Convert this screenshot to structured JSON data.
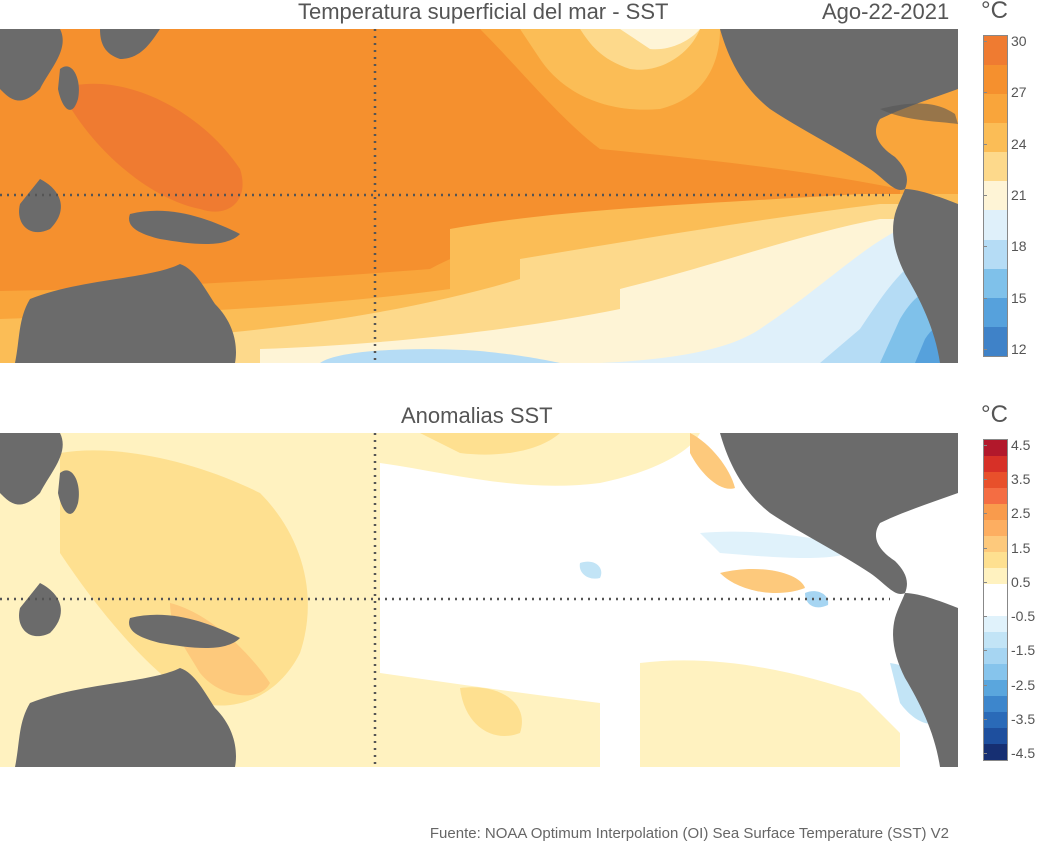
{
  "sst_panel": {
    "title": "Temperatura superficial del mar - SST",
    "date": "Ago-22-2021",
    "unit": "°C",
    "colorbar": {
      "ticks": [
        "30",
        "27",
        "24",
        "21",
        "18",
        "15",
        "12"
      ],
      "colors": [
        "#ef7b31",
        "#f5902e",
        "#f9a53b",
        "#fbbd56",
        "#fdd98b",
        "#fef4d6",
        "#dff0fa",
        "#b5dcf5",
        "#7fc1ea",
        "#56a1dc",
        "#3f82c8"
      ]
    }
  },
  "anomaly_panel": {
    "title": "Anomalias SST",
    "unit": "°C",
    "colorbar": {
      "ticks": [
        "4.5",
        "3.5",
        "2.5",
        "1.5",
        "0.5",
        "-0.5",
        "-1.5",
        "-2.5",
        "-3.5",
        "-4.5"
      ],
      "colors": [
        "#b2182b",
        "#d73027",
        "#e8502b",
        "#f46d43",
        "#f99b4c",
        "#fdae61",
        "#fdc97c",
        "#fee090",
        "#fff2c0",
        "#ffffff",
        "#ffffff",
        "#e0f2fb",
        "#c2e4f6",
        "#a6d5f2",
        "#86c4ec",
        "#5aa6dd",
        "#3d86cc",
        "#2a6ab8",
        "#1e4f9e",
        "#162f72"
      ]
    }
  },
  "source": "Fuente: NOAA Optimum Interpolation (OI) Sea Surface Temperature (SST) V2",
  "colors": {
    "land": "#6b6b6b",
    "grid": "#555555"
  }
}
